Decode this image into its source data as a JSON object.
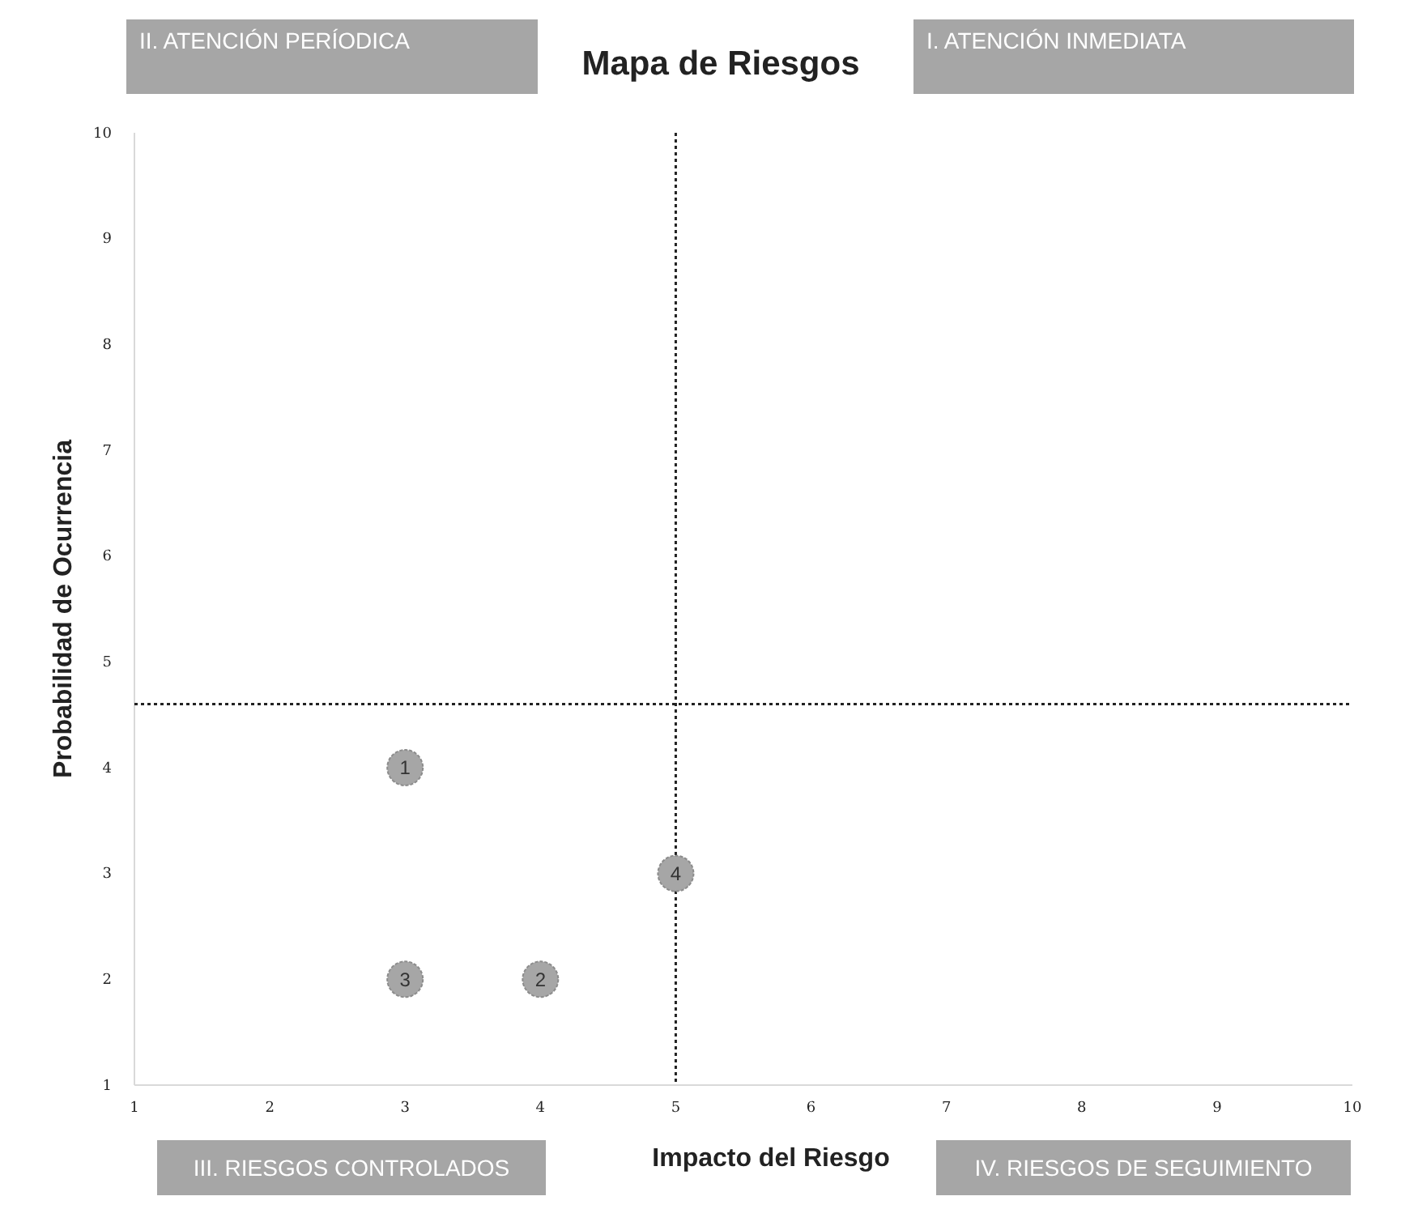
{
  "chart_data": {
    "type": "scatter",
    "title": "Mapa de Riesgos",
    "xlabel": "Impacto del Riesgo",
    "ylabel": "Probabilidad de Ocurrencia",
    "x": [
      3,
      4,
      3,
      5
    ],
    "series": [
      {
        "color": "#a6a6a6",
        "values": [
          4,
          2,
          2,
          3
        ]
      }
    ],
    "xlim": [
      1,
      10
    ],
    "xticks": [
      1,
      2,
      3,
      4,
      5,
      6,
      7,
      8,
      9,
      10
    ],
    "ylim": [
      1,
      10
    ],
    "yticks": [
      1,
      2,
      3,
      4,
      5,
      6,
      7,
      8,
      9,
      10
    ],
    "marker": "circle",
    "grid": false,
    "ref_lines": [
      {
        "axis": "x",
        "value": 5,
        "line_style": "dotted",
        "color": "#222222"
      },
      {
        "axis": "y",
        "value": 4.6,
        "line_style": "dotted",
        "color": "#222222"
      }
    ],
    "annotations": [
      "II. ATENCIÓN PERÍODICA",
      "I. ATENCIÓN INMEDIATA",
      "III. RIESGOS CONTROLADOS",
      "IV. RIESGOS DE SEGUIMIENTO",
      {
        "text": "1",
        "x": 3,
        "y": 4
      },
      {
        "text": "2",
        "x": 4,
        "y": 2
      },
      {
        "text": "3",
        "x": 3,
        "y": 2
      },
      {
        "text": "4",
        "x": 5,
        "y": 3
      }
    ]
  }
}
